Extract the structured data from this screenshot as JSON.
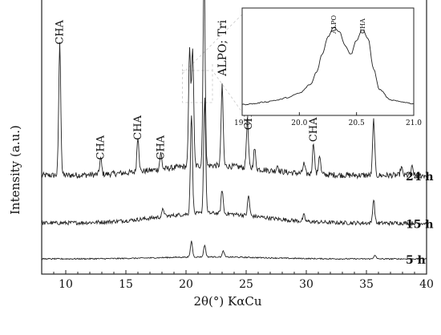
{
  "chart_data": {
    "type": "line",
    "title": "",
    "xlabel": "2θ(°) KαCu",
    "ylabel": "Intensity (a.u.)",
    "xlim": [
      8,
      40
    ],
    "xticks": [
      10,
      15,
      20,
      25,
      30,
      35,
      40
    ],
    "series": [
      {
        "name": "24 h",
        "baseline": 0.44,
        "noise": 0.015,
        "peaks": [
          [
            9.5,
            0.66
          ],
          [
            12.9,
            0.08
          ],
          [
            16.0,
            0.18
          ],
          [
            17.9,
            0.08
          ],
          [
            20.3,
            0.6
          ],
          [
            20.55,
            0.59
          ],
          [
            21.5,
            0.98
          ],
          [
            23.0,
            0.4
          ],
          [
            25.1,
            0.24
          ],
          [
            25.7,
            0.1
          ],
          [
            27.6,
            0.03
          ],
          [
            29.8,
            0.05
          ],
          [
            30.6,
            0.16
          ],
          [
            31.1,
            0.1
          ],
          [
            35.6,
            0.28
          ],
          [
            37.9,
            0.04
          ],
          [
            38.8,
            0.04
          ]
        ]
      },
      {
        "name": "15 h",
        "baseline": 0.2,
        "noise": 0.01,
        "peaks": [
          [
            18.1,
            0.04
          ],
          [
            20.45,
            0.5
          ],
          [
            21.55,
            0.58
          ],
          [
            23.0,
            0.12
          ],
          [
            25.2,
            0.1
          ],
          [
            29.8,
            0.03
          ],
          [
            35.6,
            0.12
          ]
        ]
      },
      {
        "name": "5 h",
        "baseline": 0.02,
        "noise": 0.003,
        "peaks": [
          [
            20.45,
            0.08
          ],
          [
            21.55,
            0.06
          ],
          [
            23.1,
            0.03
          ],
          [
            35.7,
            0.02
          ]
        ]
      }
    ],
    "annotations": [
      {
        "text": "CHA",
        "x": 9.5,
        "y": 1.16
      },
      {
        "text": "CHA",
        "x": 12.9,
        "y": 0.58
      },
      {
        "text": "CHA",
        "x": 16.0,
        "y": 0.68
      },
      {
        "text": "CHA",
        "x": 17.9,
        "y": 0.58
      },
      {
        "text": "ALPO; Tri",
        "x": 21.5,
        "y": 1.53,
        "rotate": true
      },
      {
        "text": "ALPO; Tri",
        "x": 23.0,
        "y": 0.94,
        "rotate": true
      },
      {
        "text": "CHA",
        "x": 25.2,
        "y": 0.73
      },
      {
        "text": "CHA",
        "x": 30.6,
        "y": 0.67
      }
    ],
    "inset": {
      "type": "line",
      "xlim": [
        19.5,
        21.0
      ],
      "xticks": [
        "19.5",
        "20.0",
        "20.5",
        "21.0"
      ],
      "x": [
        19.5,
        19.6,
        19.7,
        19.8,
        19.9,
        20.0,
        20.1,
        20.15,
        20.2,
        20.25,
        20.3,
        20.35,
        20.4,
        20.45,
        20.5,
        20.55,
        20.6,
        20.65,
        20.7,
        20.8,
        20.9,
        21.0
      ],
      "y": [
        0.05,
        0.06,
        0.08,
        0.1,
        0.13,
        0.18,
        0.28,
        0.42,
        0.62,
        0.82,
        0.93,
        0.88,
        0.72,
        0.62,
        0.78,
        0.9,
        0.8,
        0.45,
        0.22,
        0.1,
        0.08,
        0.06
      ],
      "annotations": [
        {
          "text": "ALPO",
          "x": 20.3
        },
        {
          "text": "CHA",
          "x": 20.55
        }
      ]
    }
  }
}
